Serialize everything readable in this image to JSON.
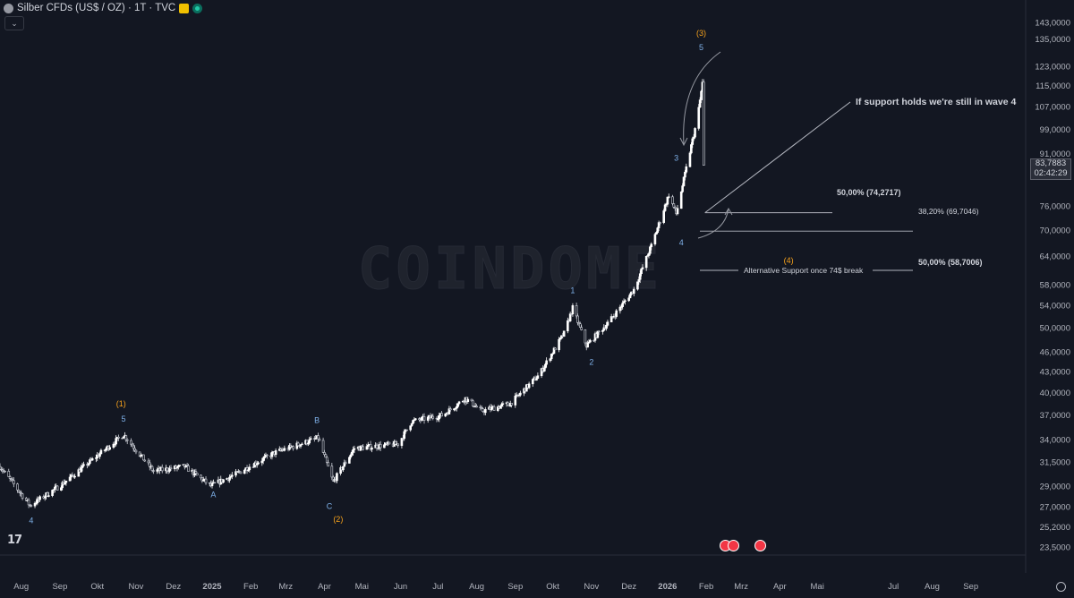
{
  "header": {
    "symbol": "Silber CFDs (US$ / OZ) · 1T · TVC",
    "collapse_glyph": "⌄"
  },
  "current_price": {
    "value": "83,7883",
    "countdown": "02:42:29"
  },
  "watermark": "COINDOME",
  "colors": {
    "background": "#131722",
    "up": "#ffffff",
    "down": "#d1d4dc",
    "orange": "#f7a21b",
    "blue_label": "#7eb0e8",
    "text": "#d1d4dc",
    "grid": "#1e222d"
  },
  "icons": {
    "logo": "tv-logo-icon",
    "settings": "gear-icon",
    "symbol": "silver-symbol-icon",
    "flag": "flag-icon",
    "live": "market-open-icon",
    "events": "us-flag-event-icon"
  },
  "chart_data": {
    "type": "candlestick",
    "title": "Silber CFDs (US$ / OZ) · 1T · TVC",
    "y_scale": "log",
    "ylim": [
      22.5,
      145
    ],
    "y_ticks": [
      "143,0000",
      "135,0000",
      "123,0000",
      "115,0000",
      "107,0000",
      "99,0000",
      "91,0000",
      "76,0000",
      "70,0000",
      "64,0000",
      "58,0000",
      "54,0000",
      "50,0000",
      "46,0000",
      "43,0000",
      "40,0000",
      "37,0000",
      "34,0000",
      "31,5000",
      "29,0000",
      "27,0000",
      "25,2000",
      "23,5000"
    ],
    "x_ticks": [
      "Aug",
      "Sep",
      "Okt",
      "Nov",
      "Dez",
      "2025",
      "Feb",
      "Mrz",
      "Apr",
      "Mai",
      "Jun",
      "Jul",
      "Aug",
      "Sep",
      "Okt",
      "Nov",
      "Dez",
      "2026",
      "Feb",
      "Mrz",
      "Apr",
      "Mai",
      "Jul",
      "Aug",
      "Sep"
    ],
    "x_range": [
      "2024-07-15",
      "2026-10-15"
    ],
    "price_path": [
      [
        "2024-07-15",
        31.0
      ],
      [
        "2024-08-08",
        27.1
      ],
      [
        "2024-09-01",
        29.0
      ],
      [
        "2024-09-25",
        31.5
      ],
      [
        "2024-10-22",
        34.6
      ],
      [
        "2024-11-15",
        30.5
      ],
      [
        "2024-12-10",
        31.0
      ],
      [
        "2024-12-31",
        29.0
      ],
      [
        "2025-01-20",
        30.2
      ],
      [
        "2025-02-20",
        32.5
      ],
      [
        "2025-03-27",
        34.2
      ],
      [
        "2025-04-08",
        29.4
      ],
      [
        "2025-04-25",
        33.0
      ],
      [
        "2025-05-30",
        33.5
      ],
      [
        "2025-06-10",
        36.2
      ],
      [
        "2025-07-05",
        37.0
      ],
      [
        "2025-07-23",
        39.2
      ],
      [
        "2025-08-05",
        37.5
      ],
      [
        "2025-08-28",
        38.5
      ],
      [
        "2025-09-20",
        42.5
      ],
      [
        "2025-10-10",
        49.0
      ],
      [
        "2025-10-17",
        53.5
      ],
      [
        "2025-10-28",
        47.0
      ],
      [
        "2025-11-15",
        51.0
      ],
      [
        "2025-12-05",
        57.0
      ],
      [
        "2025-12-20",
        67.0
      ],
      [
        "2026-01-02",
        79.0
      ],
      [
        "2026-01-08",
        74.0
      ],
      [
        "2026-01-25",
        103.0
      ],
      [
        "2026-01-29",
        116.0
      ],
      [
        "2026-01-30",
        87.0
      ],
      [
        "2026-01-31",
        83.79
      ]
    ],
    "wave_labels": [
      {
        "text": "4",
        "date": "2024-08-09",
        "price": 25.5,
        "color": "blue"
      },
      {
        "text": "(1)",
        "date": "2024-10-20",
        "price": 38.1,
        "color": "orange"
      },
      {
        "text": "5",
        "date": "2024-10-22",
        "price": 36.2,
        "color": "blue"
      },
      {
        "text": "A",
        "date": "2025-01-02",
        "price": 27.9,
        "color": "blue"
      },
      {
        "text": "B",
        "date": "2025-03-26",
        "price": 36.0,
        "color": "blue"
      },
      {
        "text": "C",
        "date": "2025-04-05",
        "price": 26.8,
        "color": "blue"
      },
      {
        "text": "(2)",
        "date": "2025-04-12",
        "price": 25.6,
        "color": "orange"
      },
      {
        "text": "1",
        "date": "2025-10-17",
        "price": 56.3,
        "color": "blue"
      },
      {
        "text": "2",
        "date": "2025-11-01",
        "price": 44.0,
        "color": "blue"
      },
      {
        "text": "3",
        "date": "2026-01-08",
        "price": 88.8,
        "color": "blue"
      },
      {
        "text": "4",
        "date": "2026-01-12",
        "price": 66.4,
        "color": "blue"
      },
      {
        "text": "(3)",
        "date": "2026-01-28",
        "price": 136.5,
        "color": "orange"
      },
      {
        "text": "5",
        "date": "2026-01-28",
        "price": 130.0,
        "color": "blue"
      },
      {
        "text": "(4)",
        "date": "2026-04-08",
        "price": 62.4,
        "color": "orange"
      }
    ],
    "annotations": [
      {
        "text": "If support holds we're still in wave 4",
        "style": "bold"
      },
      {
        "text": "50,00% (74,2717)",
        "level": 74.2717,
        "style": "bold"
      },
      {
        "text": "38,20% (69,7046)",
        "level": 69.7046,
        "style": "normal"
      },
      {
        "text": "Alternative Support once 74$ break",
        "style": "normal"
      },
      {
        "text": "50,00% (58,7006)",
        "level": 58.7006,
        "style": "bold"
      }
    ]
  }
}
